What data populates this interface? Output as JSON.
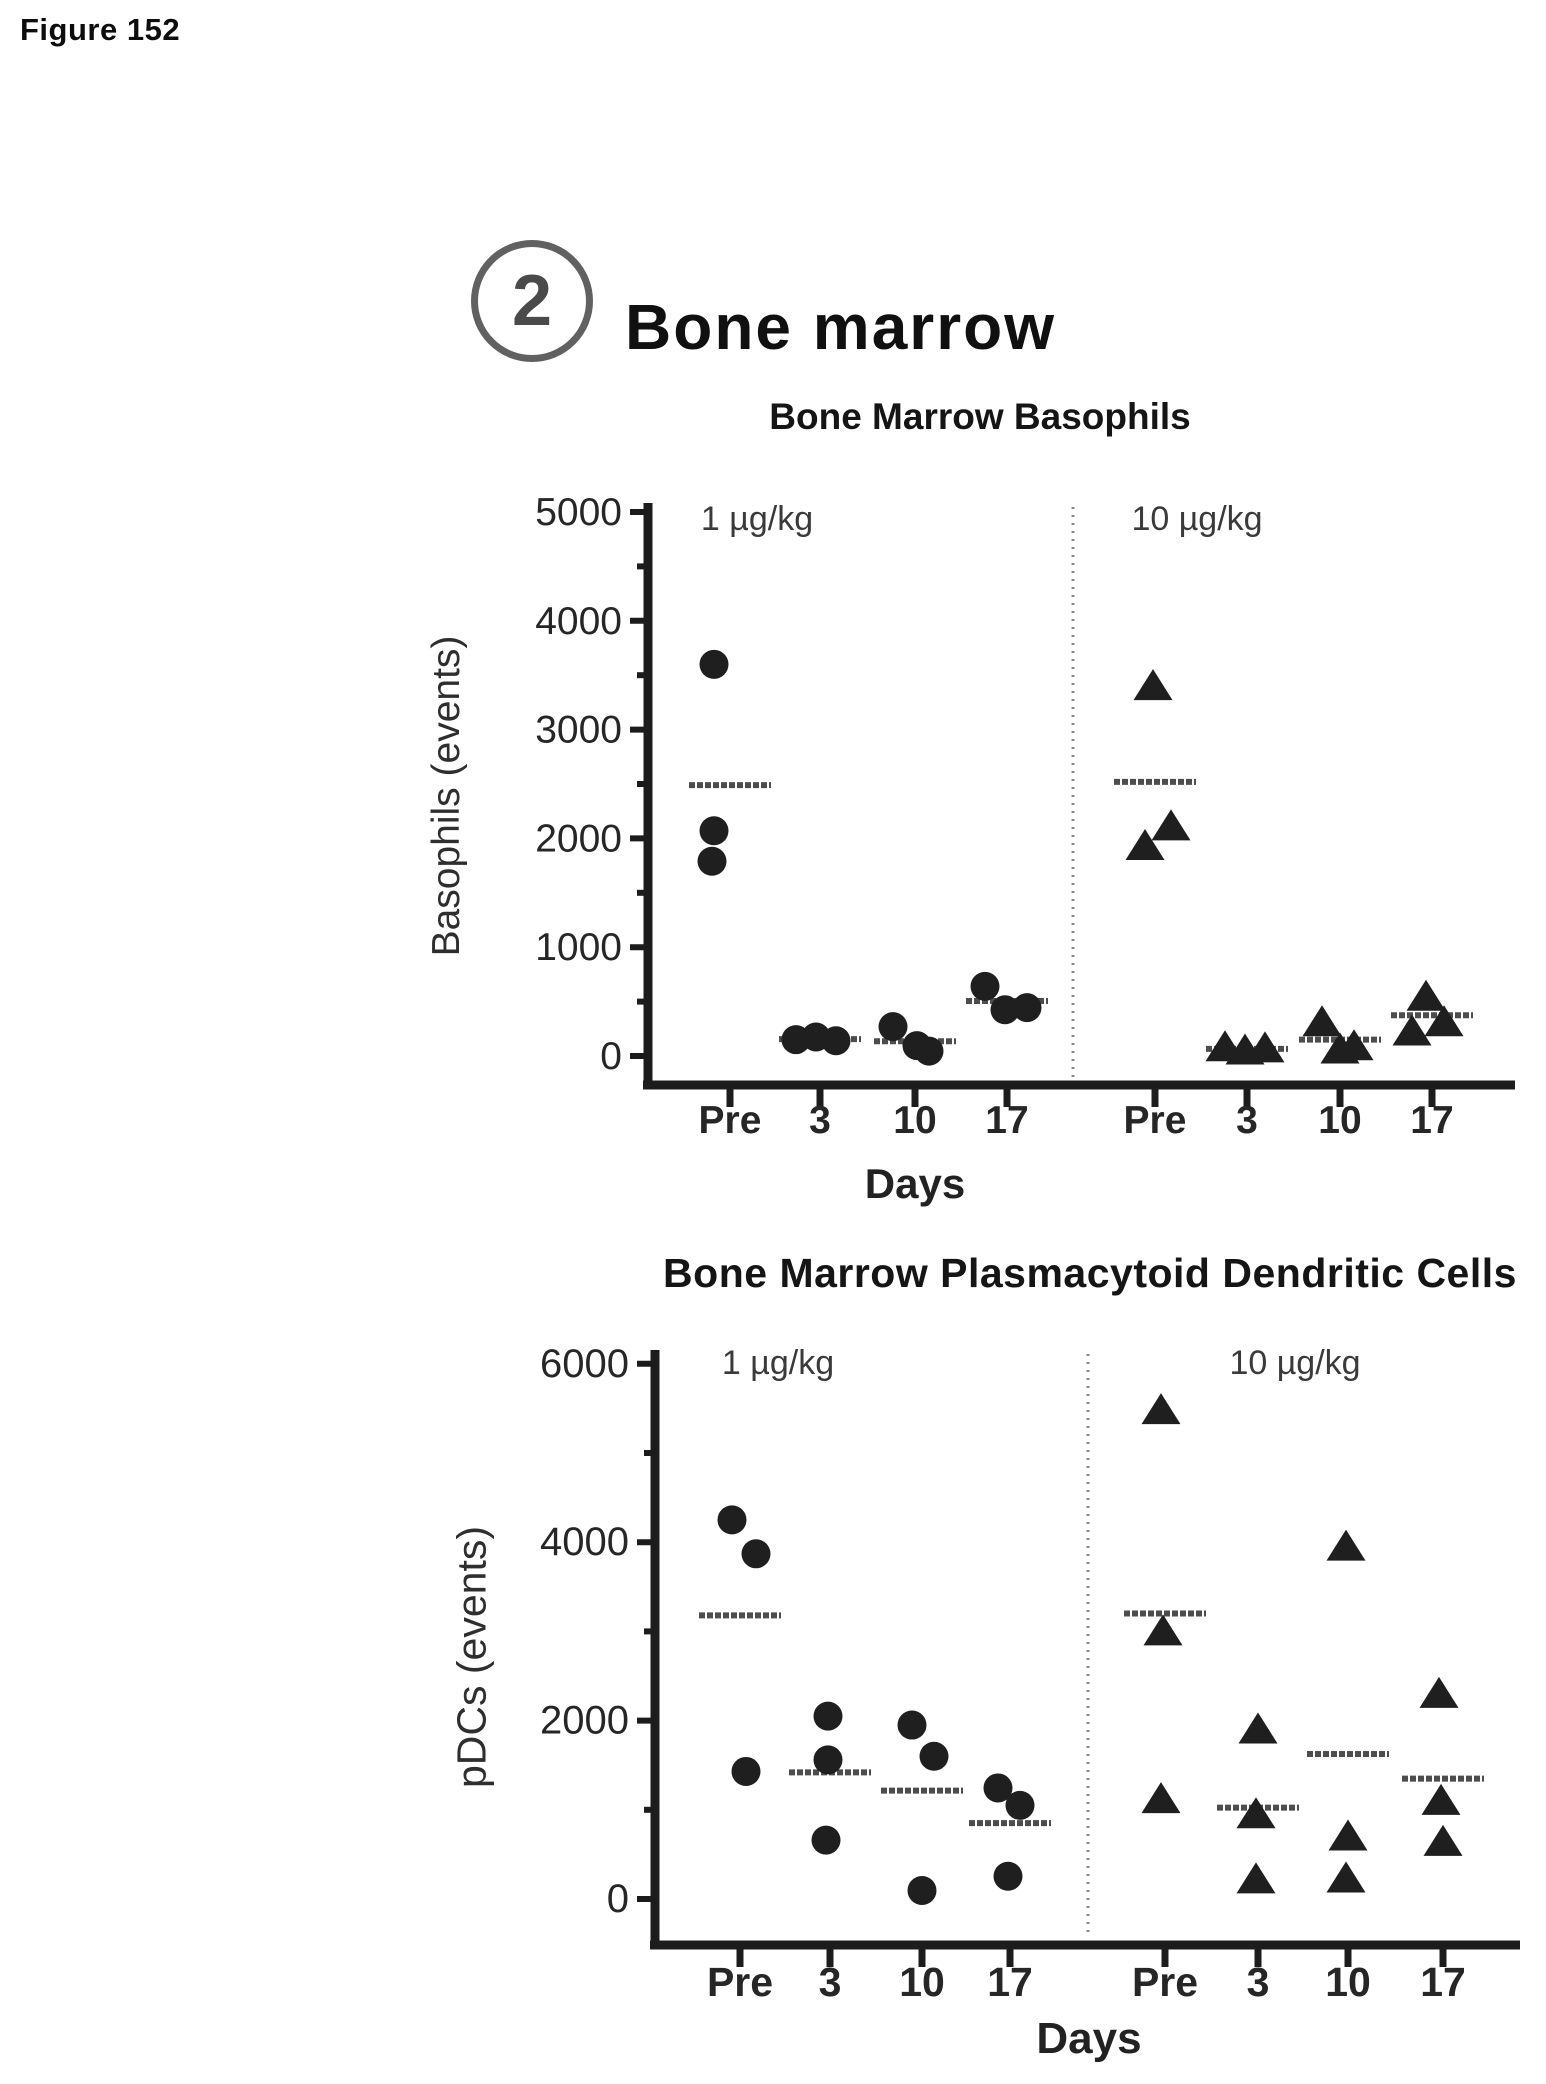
{
  "figure_label": "Figure 152",
  "heading": {
    "number": "2",
    "title": "Bone marrow"
  },
  "colors": {
    "ink": "#1c1c1c",
    "marker": "#1f1f1f",
    "mean_line": "#4d4d4d",
    "separator": "#8a8a8a",
    "tick_text": "#262626"
  },
  "chart_data": [
    {
      "type": "scatter",
      "title": "Bone Marrow Basophils",
      "ylabel": "Basophils (events)",
      "xlabel": "Days",
      "ylim": [
        0,
        5000
      ],
      "ytick_values": [
        0,
        1000,
        2000,
        3000,
        4000,
        5000
      ],
      "ytick_labels": [
        "0",
        "1000",
        "2000",
        "3000",
        "4000",
        "5000"
      ],
      "yminor_step": 500,
      "grid": false,
      "categories": [
        "Pre",
        "3",
        "10",
        "17"
      ],
      "legend_position": "panel-top",
      "groups": [
        {
          "label": "1 µg/kg",
          "marker": "circle",
          "values": {
            "Pre": [
              3600,
              2070,
              1790
            ],
            "3": [
              150,
              175,
              140
            ],
            "10": [
              270,
              95,
              45
            ],
            "17": [
              640,
              425,
              445
            ]
          },
          "mean_lines": {
            "Pre": 2490,
            "3": 155,
            "10": 135,
            "17": 505
          }
        },
        {
          "label": "10 µg/kg",
          "marker": "triangle",
          "values": {
            "Pre": [
              3400,
              2110,
              1930
            ],
            "3": [
              80,
              50,
              70
            ],
            "10": [
              310,
              60,
              90
            ],
            "17": [
              545,
              225,
              310
            ]
          },
          "mean_lines": {
            "Pre": 2520,
            "3": 65,
            "10": 150,
            "17": 375
          }
        }
      ]
    },
    {
      "type": "scatter",
      "title": "Bone Marrow Plasmacytoid Dendritic Cells",
      "ylabel": "pDCs (events)",
      "xlabel": "Days",
      "ylim": [
        0,
        6000
      ],
      "ytick_values": [
        0,
        2000,
        4000,
        6000
      ],
      "ytick_labels": [
        "0",
        "2000",
        "4000",
        "6000"
      ],
      "yminor_step": 1000,
      "grid": false,
      "categories": [
        "Pre",
        "3",
        "10",
        "17"
      ],
      "legend_position": "panel-top",
      "groups": [
        {
          "label": "1 µg/kg",
          "marker": "circle",
          "values": {
            "Pre": [
              4250,
              3870,
              1430
            ],
            "3": [
              2050,
              1560,
              660
            ],
            "10": [
              1950,
              1600,
              95
            ],
            "17": [
              1245,
              1050,
              255
            ]
          },
          "mean_lines": {
            "Pre": 3180,
            "3": 1420,
            "10": 1215,
            "17": 850
          }
        },
        {
          "label": "10 µg/kg",
          "marker": "triangle",
          "values": {
            "Pre": [
              5480,
              3000,
              1120
            ],
            "3": [
              1900,
              950,
              220
            ],
            "10": [
              3950,
              700,
              230
            ],
            "17": [
              2300,
              1100,
              640
            ]
          },
          "mean_lines": {
            "Pre": 3200,
            "3": 1025,
            "10": 1625,
            "17": 1350
          }
        }
      ]
    }
  ]
}
